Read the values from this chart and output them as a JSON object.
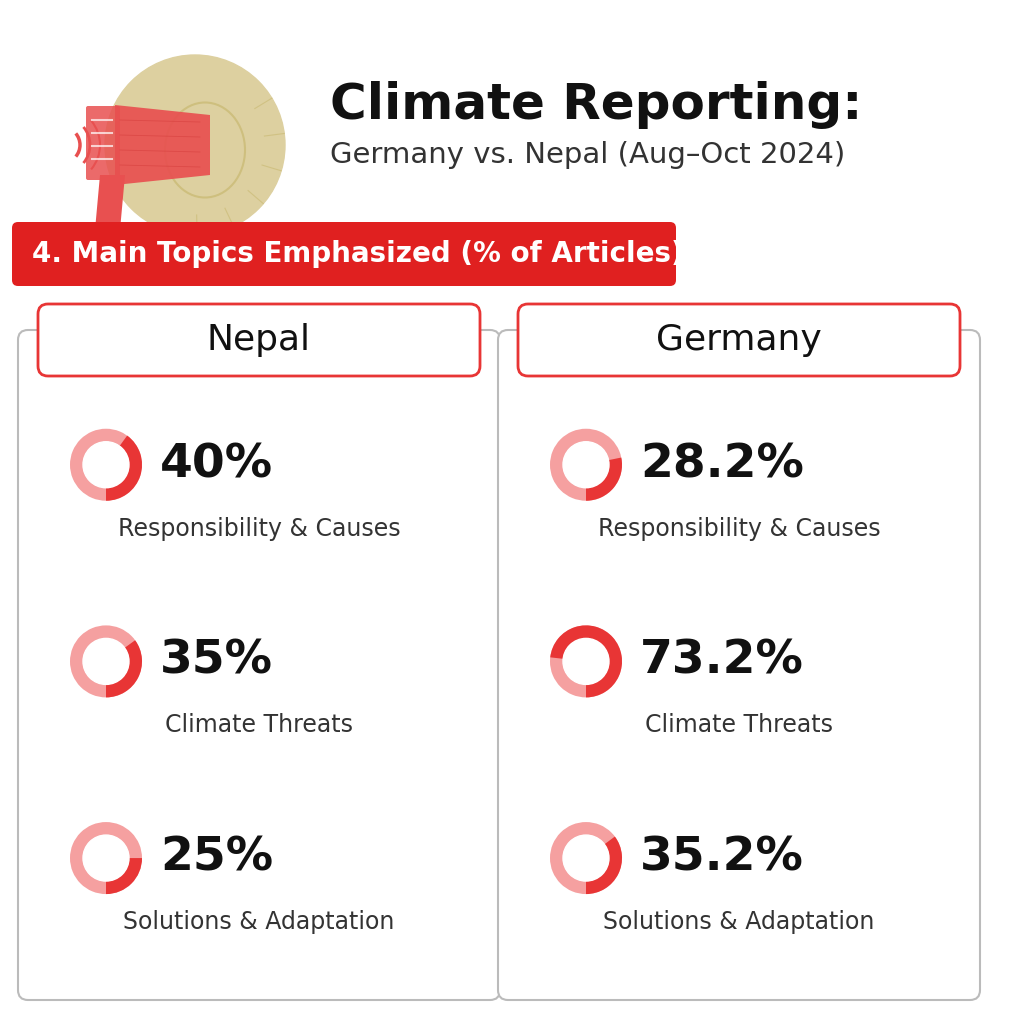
{
  "title_bold": "Climate Reporting:",
  "title_sub": "Germany vs. Nepal (Aug–Oct 2024)",
  "section_label": "4. Main Topics Emphasized (% of Articles)",
  "background_color": "#ffffff",
  "red_banner_color": "#e02020",
  "nepal": {
    "label": "Nepal",
    "items": [
      {
        "value": 40.0,
        "text": "40%",
        "desc": "Responsibility & Causes"
      },
      {
        "value": 35.0,
        "text": "35%",
        "desc": "Climate Threats"
      },
      {
        "value": 25.0,
        "text": "25%",
        "desc": "Solutions & Adaptation"
      }
    ]
  },
  "germany": {
    "label": "Germany",
    "items": [
      {
        "value": 28.2,
        "text": "28.2%",
        "desc": "Responsibility & Causes"
      },
      {
        "value": 73.2,
        "text": "73.2%",
        "desc": "Climate Threats"
      },
      {
        "value": 35.2,
        "text": "35.2%",
        "desc": "Solutions & Adaptation"
      }
    ]
  },
  "donut_color_filled": "#e83535",
  "donut_color_light": "#f5a0a0",
  "card_border_color": "#bbbbbb",
  "header_border_color": "#e83535",
  "mega_red": "#e85050",
  "mega_cream": "#ddd0a0"
}
